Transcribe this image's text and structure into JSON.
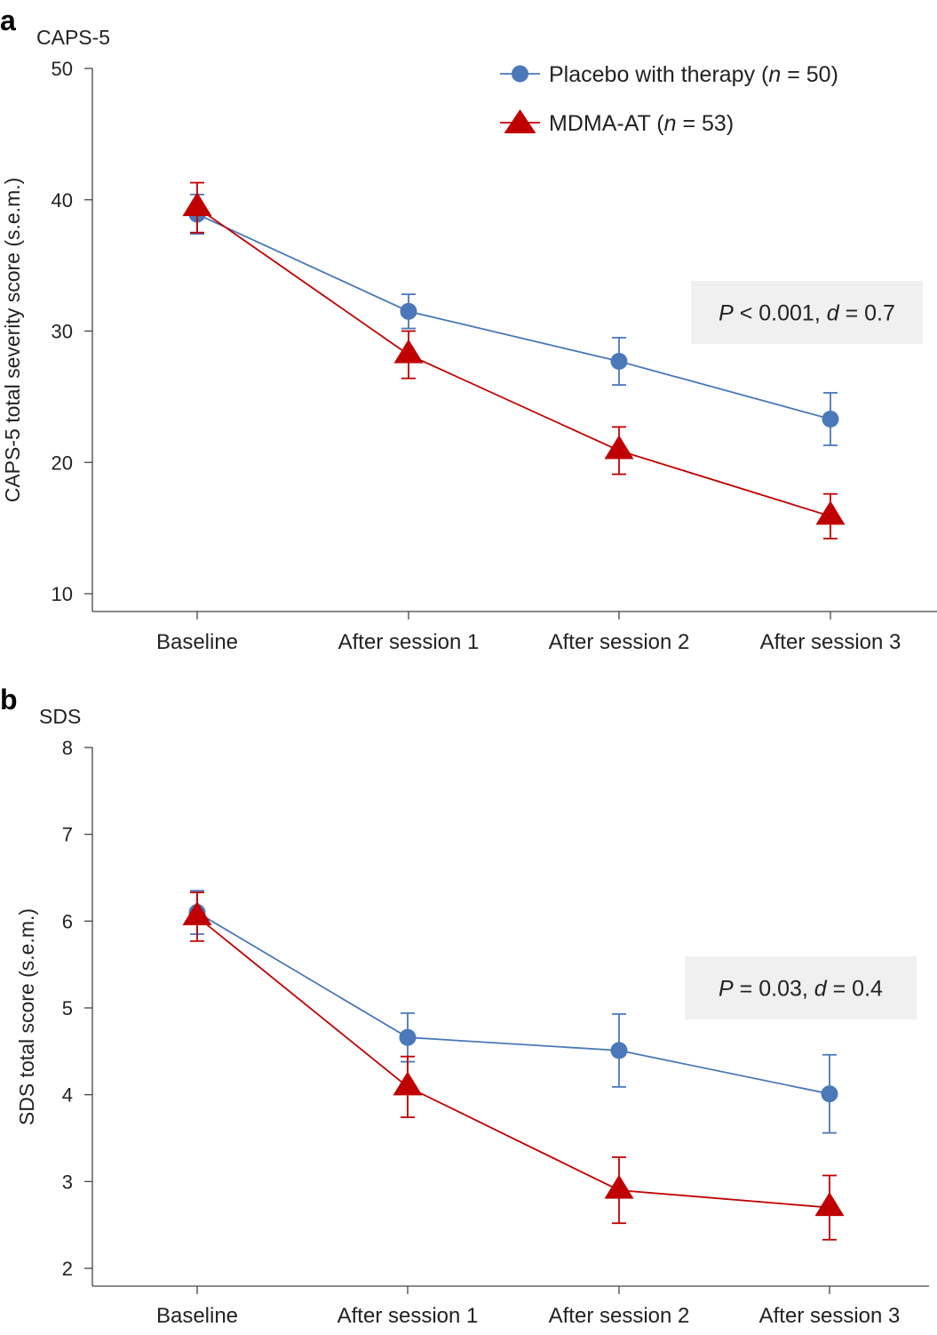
{
  "chart_data": [
    {
      "type": "line",
      "panel_label": "a",
      "title": "CAPS-5",
      "ylabel": "CAPS-5 total severity score (s.e.m.)",
      "xlabel": "",
      "categories": [
        "Baseline",
        "After session 1",
        "After session 2",
        "After session 3"
      ],
      "ylim": [
        10,
        50
      ],
      "yticks": [
        10,
        20,
        30,
        40,
        50
      ],
      "grid": false,
      "legend_position": "top-right",
      "annotation": {
        "p_label": "P",
        "p_text": " < 0.001, ",
        "d_label": "d",
        "d_text": " = 0.7"
      },
      "series": [
        {
          "name": "Placebo with therapy",
          "n_label": "n",
          "n_text": " = 50",
          "marker": "circle",
          "color": "#4a78b8",
          "values": [
            38.9,
            31.5,
            27.7,
            23.3
          ],
          "errors": [
            1.5,
            1.3,
            1.8,
            2.0
          ]
        },
        {
          "name": "MDMA-AT",
          "n_label": "n",
          "n_text": " = 53",
          "marker": "triangle",
          "color": "#c00000",
          "values": [
            39.4,
            28.2,
            20.9,
            15.9
          ],
          "errors": [
            1.9,
            1.8,
            1.8,
            1.7
          ]
        }
      ]
    },
    {
      "type": "line",
      "panel_label": "b",
      "title": "SDS",
      "ylabel": "SDS total score (s.e.m.)",
      "xlabel": "",
      "categories": [
        "Baseline",
        "After session 1",
        "After session 2",
        "After session 3"
      ],
      "ylim": [
        2,
        8
      ],
      "yticks": [
        2,
        3,
        4,
        5,
        6,
        7,
        8
      ],
      "grid": false,
      "annotation": {
        "p_label": "P",
        "p_text": " = 0.03, ",
        "d_label": "d",
        "d_text": " = 0.4"
      },
      "series": [
        {
          "name": "Placebo with therapy",
          "marker": "circle",
          "color": "#4a78b8",
          "values": [
            6.1,
            4.66,
            4.51,
            4.01
          ],
          "errors": [
            0.25,
            0.28,
            0.42,
            0.45
          ]
        },
        {
          "name": "MDMA-AT",
          "marker": "triangle",
          "color": "#c00000",
          "values": [
            6.05,
            4.09,
            2.9,
            2.7
          ],
          "errors": [
            0.28,
            0.35,
            0.38,
            0.37
          ]
        }
      ]
    }
  ]
}
